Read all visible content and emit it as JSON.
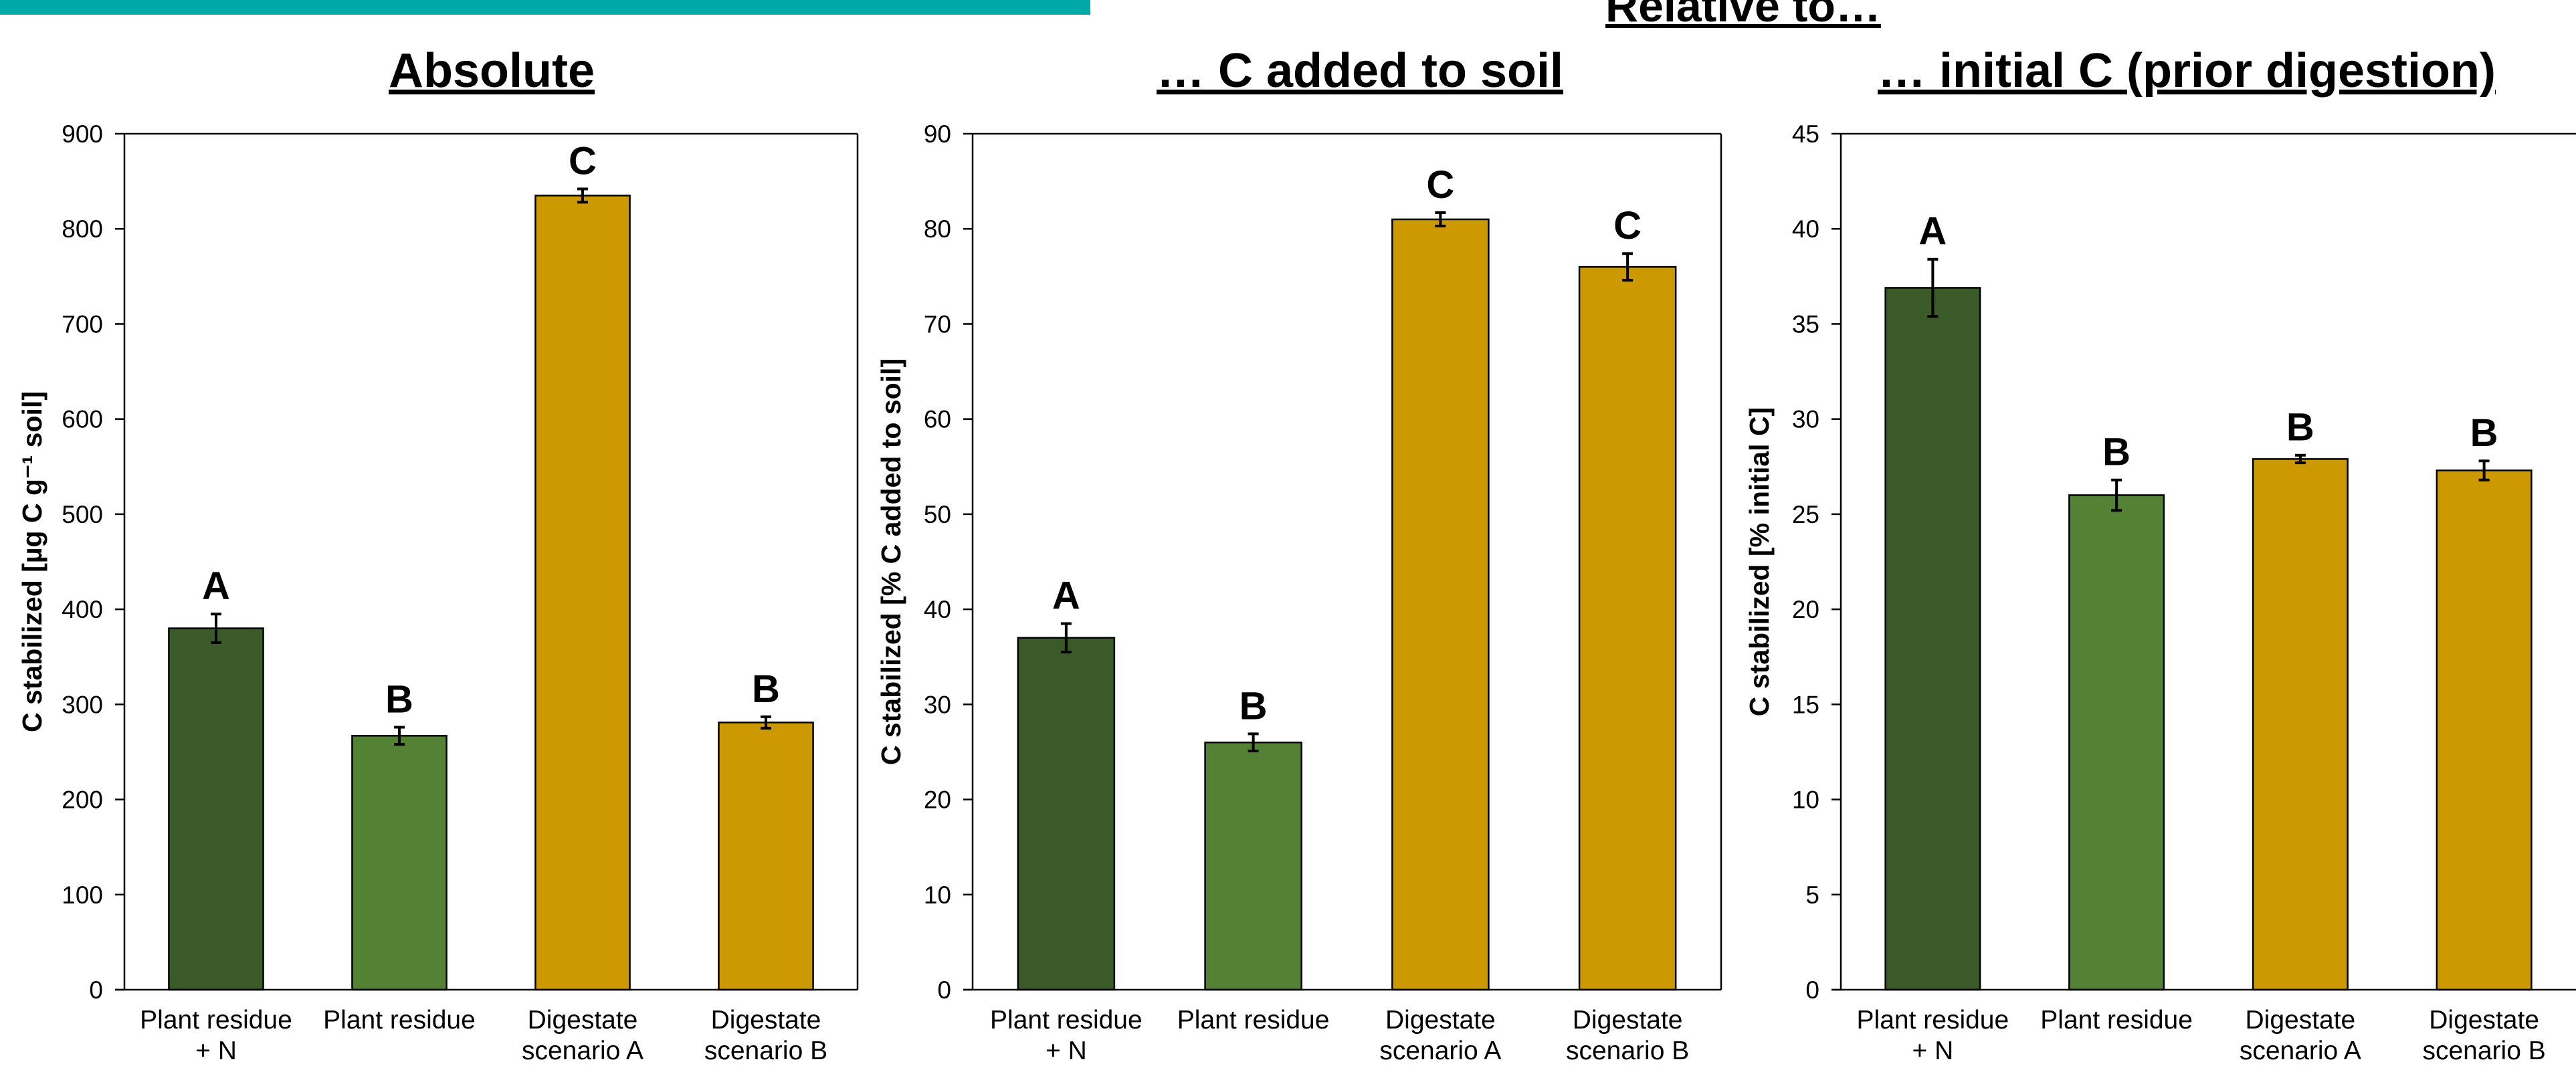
{
  "header": {
    "relative_to": "Relative to…",
    "accent_color": "#00a8a8"
  },
  "chart_data": [
    {
      "type": "bar",
      "title": "Absolute",
      "ylabel": "C stabilized [µg C g⁻¹ soil]",
      "ylim": [
        0,
        900
      ],
      "yticks": [
        0,
        100,
        200,
        300,
        400,
        500,
        600,
        700,
        800,
        900
      ],
      "categories": [
        [
          "Plant residue",
          "+ N"
        ],
        [
          "Plant residue"
        ],
        [
          "Digestate",
          "scenario A"
        ],
        [
          "Digestate",
          "scenario B"
        ]
      ],
      "values": [
        380,
        267,
        835,
        281
      ],
      "errors": [
        15,
        9,
        7,
        6
      ],
      "letters": [
        "A",
        "B",
        "C",
        "B"
      ],
      "colors": [
        "#3a5a27",
        "#548235",
        "#cc9900",
        "#cc9900"
      ],
      "grid": false
    },
    {
      "type": "bar",
      "title": "… C added to soil",
      "ylabel": "C stabilized [% C added to soil]",
      "ylim": [
        0,
        90
      ],
      "yticks": [
        0,
        10,
        20,
        30,
        40,
        50,
        60,
        70,
        80,
        90
      ],
      "categories": [
        [
          "Plant residue",
          "+ N"
        ],
        [
          "Plant residue"
        ],
        [
          "Digestate",
          "scenario A"
        ],
        [
          "Digestate",
          "scenario B"
        ]
      ],
      "values": [
        37,
        26,
        81,
        76
      ],
      "errors": [
        1.5,
        0.9,
        0.7,
        1.4
      ],
      "letters": [
        "A",
        "B",
        "C",
        "C"
      ],
      "colors": [
        "#3a5a27",
        "#548235",
        "#cc9900",
        "#cc9900"
      ],
      "grid": false
    },
    {
      "type": "bar",
      "title": "… initial C (prior digestion)",
      "ylabel": "C stabilized [% initial C]",
      "ylim": [
        0,
        45
      ],
      "yticks": [
        0,
        5,
        10,
        15,
        20,
        25,
        30,
        35,
        40,
        45
      ],
      "categories": [
        [
          "Plant residue",
          "+ N"
        ],
        [
          "Plant residue"
        ],
        [
          "Digestate",
          "scenario A"
        ],
        [
          "Digestate",
          "scenario B"
        ]
      ],
      "values": [
        36.9,
        26,
        27.9,
        27.3
      ],
      "errors": [
        1.5,
        0.8,
        0.2,
        0.5
      ],
      "letters": [
        "A",
        "B",
        "B",
        "B"
      ],
      "colors": [
        "#3a5a27",
        "#548235",
        "#cc9900",
        "#cc9900"
      ],
      "grid": false
    }
  ]
}
